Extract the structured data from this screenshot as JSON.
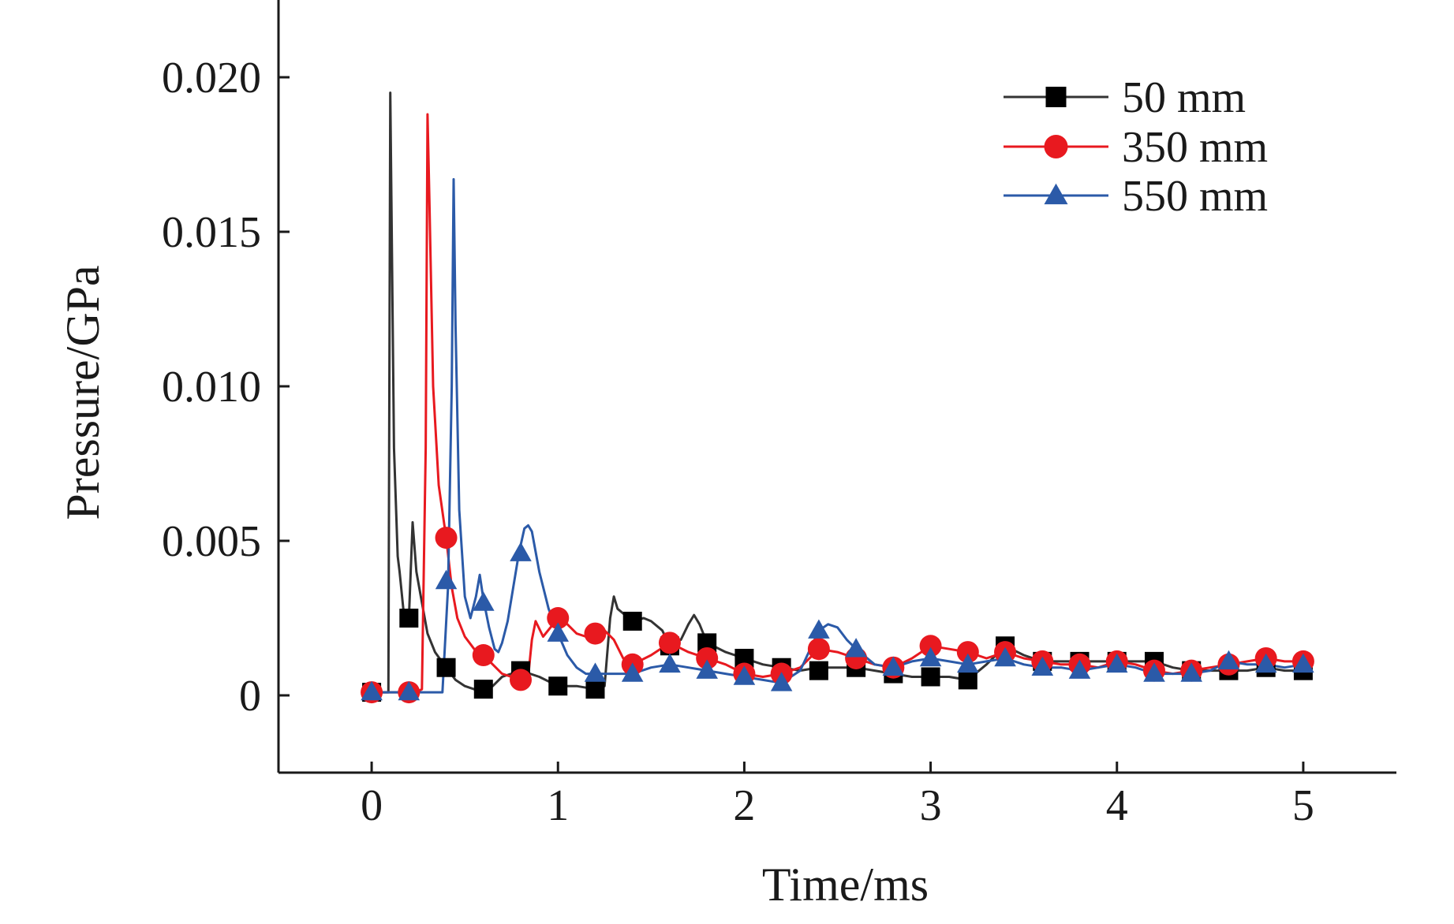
{
  "chart_data": {
    "type": "line",
    "title": "",
    "xlabel": "Time/ms",
    "ylabel": "Pressure/GPa",
    "xlim": [
      -0.5,
      5.5
    ],
    "ylim": [
      -0.0025,
      0.0225
    ],
    "xticks": [
      0,
      1,
      2,
      3,
      4,
      5
    ],
    "xtick_labels": [
      "0",
      "1",
      "2",
      "3",
      "4",
      "5"
    ],
    "yticks": [
      0,
      0.005,
      0.01,
      0.015,
      0.02
    ],
    "ytick_labels": [
      "0",
      "0.005",
      "0.010",
      "0.015",
      "0.020"
    ],
    "grid": false,
    "legend_position": "top-right",
    "series": [
      {
        "name": "50 mm",
        "color": "#333333",
        "marker_color": "#000000",
        "marker": "square",
        "x": [
          0,
          0.05,
          0.07,
          0.08,
          0.09,
          0.1,
          0.12,
          0.14,
          0.15,
          0.17,
          0.2,
          0.22,
          0.24,
          0.27,
          0.3,
          0.34,
          0.4,
          0.45,
          0.5,
          0.55,
          0.6,
          0.65,
          0.7,
          0.8,
          0.9,
          1.0,
          1.1,
          1.2,
          1.25,
          1.28,
          1.3,
          1.32,
          1.36,
          1.4,
          1.46,
          1.5,
          1.56,
          1.6,
          1.66,
          1.7,
          1.73,
          1.76,
          1.8,
          1.9,
          2.0,
          2.1,
          2.2,
          2.3,
          2.4,
          2.5,
          2.6,
          2.7,
          2.8,
          2.9,
          3.0,
          3.1,
          3.2,
          3.3,
          3.4,
          3.5,
          3.6,
          3.7,
          3.8,
          3.9,
          4.0,
          4.1,
          4.2,
          4.3,
          4.4,
          4.5,
          4.6,
          4.7,
          4.8,
          4.9,
          5.0
        ],
        "y": [
          0.0001,
          0.0001,
          0.0001,
          0.0001,
          0.0001,
          0.0195,
          0.008,
          0.0045,
          0.004,
          0.0028,
          0.0025,
          0.0056,
          0.004,
          0.003,
          0.002,
          0.0014,
          0.0009,
          0.0005,
          0.0003,
          0.0002,
          0.0002,
          0.0003,
          0.0006,
          0.0008,
          0.0006,
          0.0003,
          0.0003,
          0.0002,
          0.0003,
          0.0025,
          0.0032,
          0.0028,
          0.0026,
          0.0024,
          0.0025,
          0.0024,
          0.0021,
          0.0016,
          0.0018,
          0.0023,
          0.0026,
          0.0023,
          0.0017,
          0.0014,
          0.0012,
          0.001,
          0.0009,
          0.0008,
          0.0009,
          0.0009,
          0.0009,
          0.0008,
          0.0007,
          0.0006,
          0.0006,
          0.0006,
          0.0005,
          0.001,
          0.0016,
          0.0013,
          0.0011,
          0.0011,
          0.0011,
          0.0011,
          0.0011,
          0.0011,
          0.0011,
          0.0009,
          0.0008,
          0.0008,
          0.0008,
          0.0008,
          0.0009,
          0.0008,
          0.0008
        ],
        "marker_x": [
          0,
          0.2,
          0.4,
          0.6,
          0.8,
          1.0,
          1.2,
          1.4,
          1.6,
          1.8,
          2.0,
          2.2,
          2.4,
          2.6,
          2.8,
          3.0,
          3.2,
          3.4,
          3.6,
          3.8,
          4.0,
          4.2,
          4.4,
          4.6,
          4.8,
          5.0
        ],
        "marker_y": [
          0.0001,
          0.0025,
          0.0009,
          0.0002,
          0.0008,
          0.0003,
          0.0002,
          0.0024,
          0.0016,
          0.0017,
          0.0012,
          0.0009,
          0.0008,
          0.0009,
          0.0007,
          0.0006,
          0.0005,
          0.0016,
          0.0011,
          0.0011,
          0.0011,
          0.0011,
          0.0008,
          0.0008,
          0.0009,
          0.0008
        ]
      },
      {
        "name": "350 mm",
        "color": "#e8191f",
        "marker_color": "#e8191f",
        "marker": "circle",
        "x": [
          0,
          0.1,
          0.2,
          0.24,
          0.27,
          0.29,
          0.3,
          0.31,
          0.33,
          0.36,
          0.4,
          0.43,
          0.46,
          0.5,
          0.55,
          0.6,
          0.65,
          0.7,
          0.75,
          0.8,
          0.84,
          0.86,
          0.88,
          0.92,
          0.96,
          1.0,
          1.05,
          1.1,
          1.15,
          1.2,
          1.25,
          1.3,
          1.35,
          1.4,
          1.5,
          1.6,
          1.7,
          1.8,
          1.9,
          2.0,
          2.1,
          2.2,
          2.3,
          2.4,
          2.5,
          2.6,
          2.7,
          2.8,
          2.9,
          3.0,
          3.1,
          3.2,
          3.3,
          3.4,
          3.5,
          3.6,
          3.7,
          3.8,
          3.9,
          4.0,
          4.1,
          4.2,
          4.3,
          4.4,
          4.5,
          4.6,
          4.7,
          4.8,
          4.9,
          5.0
        ],
        "y": [
          0.0001,
          0.0001,
          0.0001,
          0.0001,
          0.0002,
          0.008,
          0.0188,
          0.016,
          0.01,
          0.0068,
          0.0051,
          0.0035,
          0.0025,
          0.0019,
          0.0015,
          0.0013,
          0.001,
          0.0007,
          0.0006,
          0.0005,
          0.0006,
          0.0018,
          0.0024,
          0.0019,
          0.0022,
          0.0025,
          0.0023,
          0.002,
          0.0019,
          0.002,
          0.0021,
          0.0018,
          0.0012,
          0.001,
          0.0013,
          0.0017,
          0.0014,
          0.0012,
          0.001,
          0.0007,
          0.0006,
          0.0007,
          0.0009,
          0.0015,
          0.0014,
          0.0012,
          0.001,
          0.0009,
          0.0012,
          0.0016,
          0.0015,
          0.0014,
          0.0012,
          0.0014,
          0.0012,
          0.0011,
          0.001,
          0.001,
          0.0009,
          0.0011,
          0.001,
          0.0008,
          0.0007,
          0.0008,
          0.0009,
          0.001,
          0.0011,
          0.0012,
          0.0011,
          0.0011
        ],
        "marker_x": [
          0,
          0.2,
          0.4,
          0.6,
          0.8,
          1.0,
          1.2,
          1.4,
          1.6,
          1.8,
          2.0,
          2.2,
          2.4,
          2.6,
          2.8,
          3.0,
          3.2,
          3.4,
          3.6,
          3.8,
          4.0,
          4.2,
          4.4,
          4.6,
          4.8,
          5.0
        ],
        "marker_y": [
          0.0001,
          0.0001,
          0.0051,
          0.0013,
          0.0005,
          0.0025,
          0.002,
          0.001,
          0.0017,
          0.0012,
          0.0007,
          0.0007,
          0.0015,
          0.0012,
          0.0009,
          0.0016,
          0.0014,
          0.0014,
          0.0011,
          0.001,
          0.0011,
          0.0008,
          0.0008,
          0.001,
          0.0012,
          0.0011
        ]
      },
      {
        "name": "550 mm",
        "color": "#2b5aa8",
        "marker_color": "#2b5aa8",
        "marker": "triangle",
        "x": [
          0,
          0.1,
          0.2,
          0.3,
          0.38,
          0.41,
          0.43,
          0.44,
          0.45,
          0.47,
          0.5,
          0.53,
          0.56,
          0.58,
          0.6,
          0.63,
          0.66,
          0.68,
          0.7,
          0.73,
          0.76,
          0.79,
          0.82,
          0.84,
          0.86,
          0.9,
          0.95,
          1.0,
          1.05,
          1.1,
          1.15,
          1.2,
          1.3,
          1.4,
          1.5,
          1.6,
          1.7,
          1.8,
          1.9,
          2.0,
          2.1,
          2.2,
          2.3,
          2.4,
          2.45,
          2.5,
          2.55,
          2.6,
          2.7,
          2.8,
          2.9,
          3.0,
          3.1,
          3.2,
          3.3,
          3.4,
          3.5,
          3.6,
          3.7,
          3.8,
          3.9,
          4.0,
          4.1,
          4.2,
          4.3,
          4.4,
          4.5,
          4.6,
          4.7,
          4.8,
          4.9,
          5.0
        ],
        "y": [
          0.0001,
          0.0001,
          0.0001,
          0.0001,
          0.0001,
          0.0035,
          0.01,
          0.0167,
          0.012,
          0.006,
          0.0032,
          0.0025,
          0.0032,
          0.0039,
          0.0031,
          0.0022,
          0.0015,
          0.0014,
          0.0017,
          0.0024,
          0.0035,
          0.0046,
          0.0054,
          0.0055,
          0.0053,
          0.004,
          0.0028,
          0.002,
          0.0013,
          0.0009,
          0.0007,
          0.0007,
          0.0007,
          0.0007,
          0.0009,
          0.001,
          0.0009,
          0.0008,
          0.0007,
          0.0006,
          0.0005,
          0.0004,
          0.0008,
          0.0021,
          0.0023,
          0.0022,
          0.0018,
          0.0015,
          0.001,
          0.0009,
          0.0011,
          0.0012,
          0.0011,
          0.001,
          0.0011,
          0.0012,
          0.001,
          0.0009,
          0.0009,
          0.0008,
          0.0009,
          0.001,
          0.0009,
          0.0007,
          0.0007,
          0.0007,
          0.0008,
          0.0011,
          0.001,
          0.001,
          0.0009,
          0.001
        ],
        "marker_x": [
          0,
          0.2,
          0.4,
          0.6,
          0.8,
          1.0,
          1.2,
          1.4,
          1.6,
          1.8,
          2.0,
          2.2,
          2.4,
          2.6,
          2.8,
          3.0,
          3.2,
          3.4,
          3.6,
          3.8,
          4.0,
          4.2,
          4.4,
          4.6,
          4.8,
          5.0
        ],
        "marker_y": [
          0.0001,
          0.0001,
          0.0037,
          0.003,
          0.0046,
          0.002,
          0.0007,
          0.0007,
          0.001,
          0.0008,
          0.0006,
          0.0004,
          0.0021,
          0.0015,
          0.0009,
          0.0012,
          0.001,
          0.0012,
          0.0009,
          0.0008,
          0.001,
          0.0007,
          0.0007,
          0.0011,
          0.001,
          0.001
        ]
      }
    ]
  }
}
